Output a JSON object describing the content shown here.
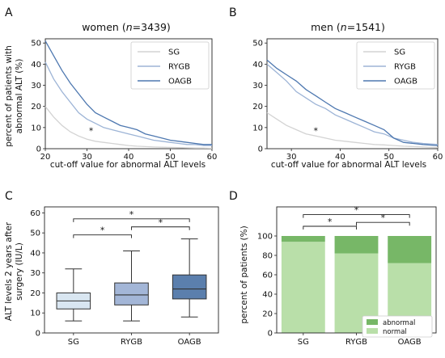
{
  "colors": {
    "SG": "#d3d3d3",
    "RYGB": "#9db4d6",
    "OAGB": "#4e78b0",
    "box_SG": "#d9e6f1",
    "box_RYGB": "#a3b6d7",
    "box_OAGB": "#5b7fad",
    "bar_normal": "#b9dfa9",
    "bar_abnormal": "#77b767",
    "bracket": "#222222"
  },
  "chart_data": [
    {
      "panel": "A",
      "type": "line",
      "title_prefix": "women (",
      "title_n": "n",
      "title_suffix": "=3439)",
      "xlabel": "cut-off value for abnormal ALT levels",
      "ylabel_lines": [
        "percent of patients with",
        "abnormal ALT (%)"
      ],
      "xlim": [
        20,
        60
      ],
      "ylim": [
        0,
        52
      ],
      "xticks": [
        20,
        30,
        40,
        50,
        60
      ],
      "yticks": [
        0,
        10,
        20,
        30,
        40,
        50
      ],
      "legend_position": "top-right",
      "annotations": [
        {
          "text": "*",
          "x": 31,
          "y": 7
        }
      ],
      "series": [
        {
          "name": "SG",
          "x": [
            20,
            22,
            24,
            26,
            28,
            30,
            32,
            34,
            36,
            38,
            40,
            42,
            44,
            46,
            48,
            50,
            52,
            54,
            56,
            58,
            60
          ],
          "values": [
            20,
            15,
            11,
            8,
            6,
            4.5,
            3.5,
            3,
            2.5,
            2,
            1.5,
            1.2,
            1,
            0.8,
            0.7,
            0.6,
            0.5,
            0.4,
            0.3,
            0.3,
            0.2
          ]
        },
        {
          "name": "RYGB",
          "x": [
            20,
            22,
            24,
            26,
            28,
            30,
            32,
            34,
            36,
            38,
            40,
            42,
            44,
            46,
            48,
            50,
            52,
            54,
            56,
            58,
            60
          ],
          "values": [
            41,
            33,
            27,
            22,
            17,
            14,
            12,
            10,
            9,
            8,
            7,
            6,
            5,
            4,
            3.5,
            3,
            2.5,
            2,
            2,
            1.5,
            1.5
          ]
        },
        {
          "name": "OAGB",
          "x": [
            20,
            22,
            24,
            26,
            28,
            30,
            32,
            34,
            36,
            38,
            40,
            42,
            44,
            46,
            48,
            50,
            52,
            54,
            56,
            58,
            60
          ],
          "values": [
            51,
            44,
            37,
            31,
            26,
            21,
            17,
            15,
            13,
            11,
            10,
            9,
            7,
            6,
            5,
            4,
            3.5,
            3,
            2.5,
            2,
            2
          ]
        }
      ]
    },
    {
      "panel": "B",
      "type": "line",
      "title_prefix": "men (",
      "title_n": "n",
      "title_suffix": "=1541)",
      "xlabel": "cut-off value for abnormal ALT levels",
      "xlim": [
        25,
        60
      ],
      "ylim": [
        0,
        52
      ],
      "xticks": [
        30,
        40,
        50,
        60
      ],
      "yticks": [
        0,
        10,
        20,
        30,
        40,
        50
      ],
      "legend_position": "top-right",
      "annotations": [
        {
          "text": "*",
          "x": 35,
          "y": 7
        }
      ],
      "series": [
        {
          "name": "SG",
          "x": [
            25,
            27,
            29,
            31,
            33,
            35,
            37,
            39,
            41,
            43,
            45,
            47,
            49,
            51,
            53,
            55,
            57,
            60
          ],
          "values": [
            17,
            14,
            11,
            9,
            7,
            6,
            5,
            4,
            3.5,
            3,
            2.5,
            2,
            1.8,
            1.5,
            1.2,
            1,
            0.8,
            0.5
          ]
        },
        {
          "name": "RYGB",
          "x": [
            25,
            27,
            29,
            31,
            33,
            35,
            37,
            39,
            41,
            43,
            45,
            47,
            49,
            51,
            53,
            55,
            57,
            60
          ],
          "values": [
            40,
            36,
            32,
            27,
            24,
            21,
            19,
            16,
            14,
            12,
            10,
            8,
            7,
            5,
            4,
            3,
            2.5,
            2
          ]
        },
        {
          "name": "OAGB",
          "x": [
            25,
            27,
            29,
            31,
            33,
            35,
            37,
            39,
            41,
            43,
            45,
            47,
            49,
            51,
            53,
            55,
            57,
            60
          ],
          "values": [
            42,
            38,
            35,
            32,
            28,
            25,
            22,
            19,
            17,
            15,
            13,
            11,
            9,
            5,
            3,
            2.5,
            2,
            1.5
          ]
        }
      ]
    },
    {
      "panel": "C",
      "type": "box",
      "ylabel_lines": [
        "ALT levels 2 years after",
        "surgery (IU/L)"
      ],
      "ylim": [
        0,
        63
      ],
      "yticks": [
        0,
        10,
        20,
        30,
        40,
        50,
        60
      ],
      "categories": [
        "SG",
        "RYGB",
        "OAGB"
      ],
      "boxes": [
        {
          "name": "SG",
          "whislo": 6,
          "q1": 12,
          "median": 16,
          "q3": 20,
          "whishi": 32
        },
        {
          "name": "RYGB",
          "whislo": 6,
          "q1": 14,
          "median": 19,
          "q3": 25,
          "whishi": 41
        },
        {
          "name": "OAGB",
          "whislo": 8,
          "q1": 17,
          "median": 22,
          "q3": 29,
          "whishi": 47
        }
      ],
      "brackets": [
        {
          "from": 0,
          "to": 2,
          "y": 57,
          "text": "*"
        },
        {
          "from": 0,
          "to": 1,
          "y": 49,
          "text": "*"
        },
        {
          "from": 1,
          "to": 2,
          "y": 53,
          "text": "*"
        }
      ]
    },
    {
      "panel": "D",
      "type": "bar",
      "stacked": true,
      "ylabel": "percent of patients (%)",
      "ylim": [
        0,
        130
      ],
      "yticks": [
        0,
        20,
        40,
        60,
        80,
        100
      ],
      "categories": [
        "SG",
        "RYGB",
        "OAGB"
      ],
      "legend_position": "bottom-right",
      "series": [
        {
          "name": "normal",
          "values": [
            94,
            82,
            72
          ]
        },
        {
          "name": "abnormal",
          "values": [
            6,
            18,
            28
          ]
        }
      ],
      "brackets": [
        {
          "from": 0,
          "to": 2,
          "y": 122,
          "text": "*"
        },
        {
          "from": 0,
          "to": 1,
          "y": 110,
          "text": "*"
        },
        {
          "from": 1,
          "to": 2,
          "y": 114,
          "text": "*"
        }
      ]
    }
  ]
}
